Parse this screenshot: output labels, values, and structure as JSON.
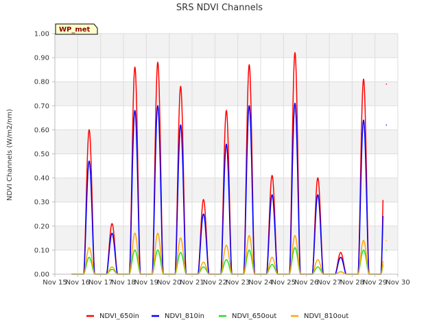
{
  "chart_data": {
    "type": "line",
    "title": "SRS NDVI Channels",
    "xlabel": "",
    "ylabel": "NDVI Channels (W/m2/nm)",
    "tag": "WP_met",
    "ylim": [
      0.0,
      1.0
    ],
    "xlim": [
      15,
      30
    ],
    "yticks": [
      0.0,
      0.1,
      0.2,
      0.3,
      0.4,
      0.5,
      0.6,
      0.7,
      0.8,
      0.9,
      1.0
    ],
    "ytick_labels": [
      "0.00",
      "0.10",
      "0.20",
      "0.30",
      "0.40",
      "0.50",
      "0.60",
      "0.70",
      "0.80",
      "0.90",
      "1.00"
    ],
    "xticks": [
      15,
      16,
      17,
      18,
      19,
      20,
      21,
      22,
      23,
      24,
      25,
      26,
      27,
      28,
      29,
      30
    ],
    "xtick_labels": [
      "Nov 15",
      "Nov 16",
      "Nov 17",
      "Nov 18",
      "Nov 19",
      "Nov 20",
      "Nov 21",
      "Nov 22",
      "Nov 23",
      "Nov 24",
      "Nov 25",
      "Nov 26",
      "Nov 27",
      "Nov 28",
      "Nov 29",
      "Nov 30"
    ],
    "days": [
      16,
      17,
      18,
      19,
      20,
      21,
      22,
      23,
      24,
      25,
      26,
      27,
      28,
      29
    ],
    "series": [
      {
        "name": "NDVI_650in",
        "color": "#ff0000",
        "peaks": [
          0.6,
          0.21,
          0.86,
          0.88,
          0.78,
          0.31,
          0.68,
          0.87,
          0.41,
          0.92,
          0.4,
          0.09,
          0.81,
          0.79
        ]
      },
      {
        "name": "NDVI_810in",
        "color": "#0000ff",
        "peaks": [
          0.47,
          0.17,
          0.68,
          0.7,
          0.62,
          0.25,
          0.54,
          0.7,
          0.33,
          0.71,
          0.33,
          0.07,
          0.64,
          0.62
        ]
      },
      {
        "name": "NDVI_650out",
        "color": "#22dd22",
        "peaks": [
          0.07,
          0.02,
          0.1,
          0.1,
          0.09,
          0.03,
          0.06,
          0.1,
          0.04,
          0.11,
          0.03,
          0.01,
          0.1,
          0.1
        ]
      },
      {
        "name": "NDVI_810out",
        "color": "#ffa500",
        "peaks": [
          0.11,
          0.03,
          0.17,
          0.17,
          0.15,
          0.05,
          0.12,
          0.16,
          0.07,
          0.16,
          0.06,
          0.01,
          0.14,
          0.14
        ]
      }
    ],
    "grid": true,
    "legend_position": "bottom"
  }
}
